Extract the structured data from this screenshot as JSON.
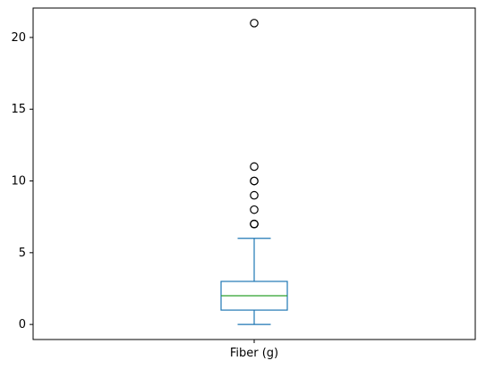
{
  "chart_data": {
    "type": "box",
    "title": "",
    "xlabel": "",
    "ylabel": "",
    "ylim": [
      -1.05,
      22.05
    ],
    "y_ticks": [
      0,
      5,
      10,
      15,
      20
    ],
    "grid": false,
    "categories": [
      "Fiber (g)"
    ],
    "boxes": [
      {
        "category": "Fiber (g)",
        "whisker_low": 0,
        "q1": 1,
        "median": 2,
        "q3": 3,
        "whisker_high": 6,
        "outliers": [
          7,
          7,
          7,
          8,
          9,
          10,
          10,
          11,
          21
        ]
      }
    ],
    "colors": {
      "box": "#1f77b4",
      "median": "#2ca02c",
      "outlier": "#000000",
      "axes": "#000000"
    }
  }
}
